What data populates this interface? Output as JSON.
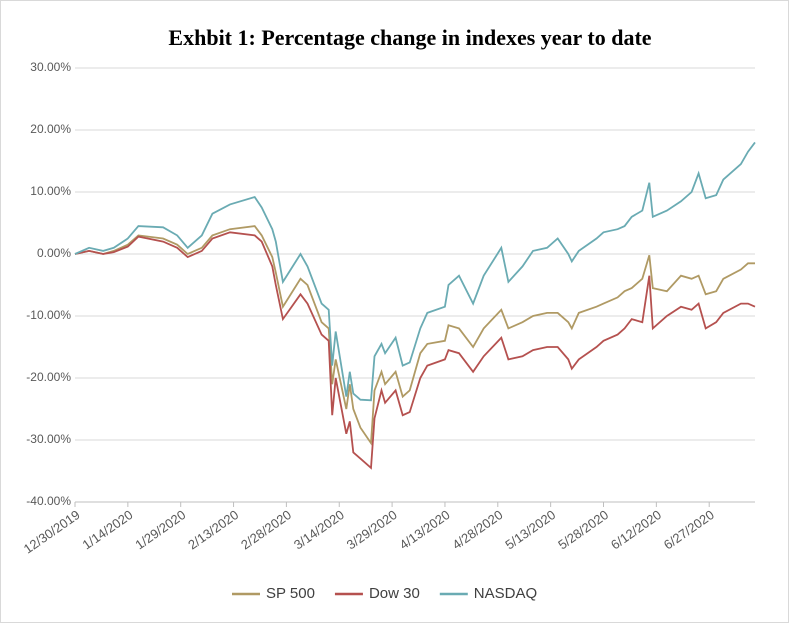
{
  "chart_data": {
    "type": "line",
    "title": "Exhbit 1:  Percentage change in indexes year to date",
    "x": [
      "12/30/2019",
      "1/3/2020",
      "1/7/2020",
      "1/10/2020",
      "1/14/2020",
      "1/17/2020",
      "1/24/2020",
      "1/28/2020",
      "1/31/2020",
      "2/4/2020",
      "2/7/2020",
      "2/12/2020",
      "2/19/2020",
      "2/21/2020",
      "2/24/2020",
      "2/25/2020",
      "2/27/2020",
      "3/3/2020",
      "3/5/2020",
      "3/9/2020",
      "3/11/2020",
      "3/12/2020",
      "3/13/2020",
      "3/16/2020",
      "3/17/2020",
      "3/18/2020",
      "3/20/2020",
      "3/23/2020",
      "3/24/2020",
      "3/26/2020",
      "3/27/2020",
      "3/30/2020",
      "4/1/2020",
      "4/3/2020",
      "4/6/2020",
      "4/8/2020",
      "4/13/2020",
      "4/14/2020",
      "4/17/2020",
      "4/21/2020",
      "4/24/2020",
      "4/29/2020",
      "5/1/2020",
      "5/5/2020",
      "5/8/2020",
      "5/12/2020",
      "5/15/2020",
      "5/18/2020",
      "5/19/2020",
      "5/21/2020",
      "5/26/2020",
      "5/28/2020",
      "6/1/2020",
      "6/3/2020",
      "6/5/2020",
      "6/8/2020",
      "6/10/2020",
      "6/11/2020",
      "6/15/2020",
      "6/19/2020",
      "6/22/2020",
      "6/24/2020",
      "6/26/2020",
      "6/29/2020",
      "7/1/2020",
      "7/6/2020",
      "7/8/2020",
      "7/10/2020"
    ],
    "series": [
      {
        "name": "SP 500",
        "color": "#b09a64",
        "values": [
          0,
          0.5,
          0,
          0.5,
          1.5,
          3,
          2.5,
          1.5,
          0,
          1,
          3,
          4,
          4.5,
          3,
          -0.5,
          -3,
          -8.5,
          -4,
          -5,
          -11,
          -12,
          -21,
          -17,
          -25,
          -21,
          -25,
          -28,
          -30.5,
          -22,
          -19,
          -21,
          -19,
          -23,
          -22,
          -16,
          -14.5,
          -14,
          -11.5,
          -12,
          -15,
          -12,
          -9,
          -12,
          -11,
          -10,
          -9.5,
          -9.5,
          -11,
          -12,
          -9.5,
          -8.5,
          -8,
          -7,
          -6,
          -5.5,
          -4,
          -0.2,
          -5.5,
          -6,
          -3.5,
          -4,
          -3.5,
          -6.5,
          -6,
          -4,
          -2.5,
          -1.5,
          -1.5
        ]
      },
      {
        "name": "Dow 30",
        "color": "#b5514f",
        "values": [
          0,
          0.5,
          0,
          0.3,
          1.2,
          2.8,
          2,
          1,
          -0.5,
          0.5,
          2.5,
          3.5,
          3,
          2,
          -2,
          -5,
          -10.5,
          -6.5,
          -8,
          -13,
          -14,
          -26,
          -20,
          -29,
          -27,
          -32,
          -33,
          -34.5,
          -26.5,
          -22,
          -24,
          -22,
          -26,
          -25.5,
          -20,
          -18,
          -17,
          -15.5,
          -16,
          -19,
          -16.5,
          -13.5,
          -17,
          -16.5,
          -15.5,
          -15,
          -15,
          -17,
          -18.5,
          -17,
          -15,
          -14,
          -13,
          -12,
          -10.5,
          -11,
          -3.5,
          -12,
          -10,
          -8.5,
          -9,
          -8,
          -12,
          -11,
          -9.5,
          -8,
          -8,
          -8.5
        ]
      },
      {
        "name": "NASDAQ",
        "color": "#6aabb3",
        "values": [
          0,
          1,
          0.5,
          1,
          2.5,
          4.5,
          4.3,
          3,
          1,
          3,
          6.5,
          8,
          9.2,
          7.5,
          4,
          2,
          -4.5,
          0,
          -2,
          -8,
          -9,
          -18,
          -12.5,
          -23,
          -19,
          -22.5,
          -23.5,
          -23.6,
          -16.5,
          -14.5,
          -16,
          -13.5,
          -18,
          -17.5,
          -12,
          -9.5,
          -8.5,
          -5,
          -3.5,
          -8,
          -3.5,
          1,
          -4.5,
          -2,
          0.5,
          1,
          2.5,
          0,
          -1.2,
          0.5,
          2.5,
          3.5,
          4,
          4.5,
          6,
          7,
          11.5,
          6,
          7,
          8.5,
          10,
          13,
          9,
          9.5,
          12,
          14.5,
          16.5,
          18
        ]
      }
    ],
    "xlim": [
      "12/30/2019",
      "7/10/2020"
    ],
    "xticks": [
      "12/30/2019",
      "1/14/2020",
      "1/29/2020",
      "2/13/2020",
      "2/28/2020",
      "3/14/2020",
      "3/29/2020",
      "4/13/2020",
      "4/28/2020",
      "5/13/2020",
      "5/28/2020",
      "6/12/2020",
      "6/27/2020"
    ],
    "ylim": [
      -40,
      30
    ],
    "yticks": [
      {
        "value": -40,
        "label": "-40.00%"
      },
      {
        "value": -30,
        "label": "-30.00%"
      },
      {
        "value": -20,
        "label": "-20.00%"
      },
      {
        "value": -10,
        "label": "-10.00%"
      },
      {
        "value": 0,
        "label": "0.00%"
      },
      {
        "value": 10,
        "label": "10.00%"
      },
      {
        "value": 20,
        "label": "20.00%"
      },
      {
        "value": 30,
        "label": "30.00%"
      }
    ],
    "grid": true,
    "legend": "bottom"
  }
}
